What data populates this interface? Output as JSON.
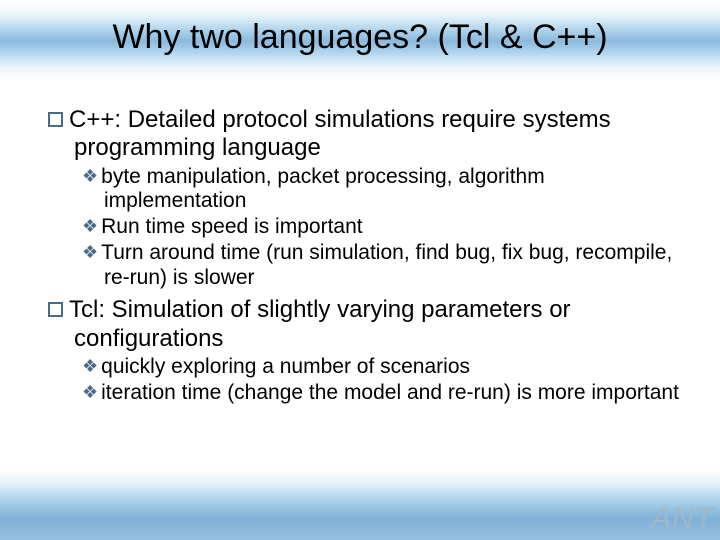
{
  "slide": {
    "title": "Why two languages? (Tcl & C++)",
    "title_fontsize": 34,
    "title_color": "#000000",
    "background_color": "#ffffff",
    "top_band_colors": [
      "#ffffff",
      "#d9ecf7",
      "#6fb2dd",
      "#2d7fc0",
      "#6fb2dd",
      "#d9ecf7",
      "#ffffff"
    ],
    "bottom_band_colors": [
      "#ffffff",
      "#cfe6f4",
      "#6bb0dc",
      "#2a7cbe",
      "#4f95cb"
    ],
    "bullet_border_color": "#4a6a8a",
    "diamond_color": "#4a6a8a",
    "level1_fontsize": 24,
    "level2_fontsize": 21,
    "items": [
      {
        "text": "C++: Detailed protocol simulations require systems programming language",
        "children": [
          {
            "text": "byte manipulation, packet processing, algorithm implementation"
          },
          {
            "text": "Run time speed is important"
          },
          {
            "text": "Turn around time (run simulation, find bug, fix bug, recompile, re-run) is slower"
          }
        ]
      },
      {
        "text": "Tcl: Simulation of slightly varying parameters or configurations",
        "children": [
          {
            "text": "quickly exploring a number of scenarios"
          },
          {
            "text": "iteration time (change the model and re-run) is more important"
          }
        ]
      }
    ],
    "logo_text": "ANT",
    "logo_color": "#9fb8c6",
    "logo_fontsize": 30
  }
}
